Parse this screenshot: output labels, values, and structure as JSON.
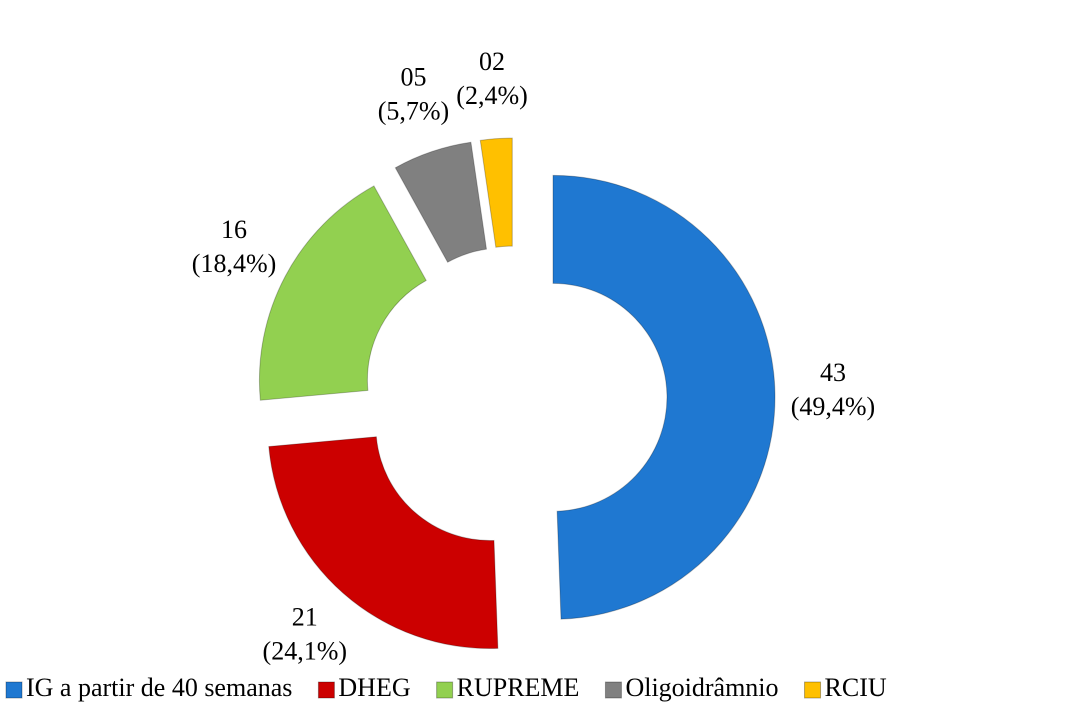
{
  "chart_data": {
    "type": "doughnut",
    "categories": [
      "IG a partir de 40 semanas",
      "DHEG",
      "RUPREME",
      "Oligoidrâmnio",
      "RCIU"
    ],
    "values": [
      43,
      21,
      16,
      5,
      2
    ],
    "value_labels": [
      "43",
      "21",
      "16",
      "05",
      "02"
    ],
    "percent_labels": [
      "(49,4%)",
      "(24,1%)",
      "(18,4%)",
      "(5,7%)",
      "(2,4%)"
    ],
    "colors": [
      "#1f78d1",
      "#cc0000",
      "#92d050",
      "#808080",
      "#ffc000"
    ],
    "legend": "bottom"
  }
}
